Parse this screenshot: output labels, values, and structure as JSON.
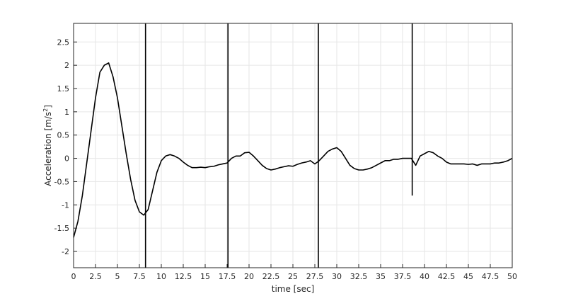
{
  "chart_data": {
    "type": "line",
    "title": "",
    "xlabel": "time [sec]",
    "ylabel": "Acceleration [m/s",
    "ylabel_superscript": "2",
    "ylabel_suffix": "]",
    "xlim": [
      0,
      50
    ],
    "ylim": [
      -2.35,
      2.9
    ],
    "grid": true,
    "x_ticks": [
      0,
      2.5,
      5,
      7.5,
      10,
      12.5,
      15,
      17.5,
      20,
      22.5,
      25,
      27.5,
      30,
      32.5,
      35,
      37.5,
      40,
      42.5,
      45,
      47.5,
      50
    ],
    "x_tick_labels": [
      "0",
      "2.5",
      "5",
      "7.5",
      "10",
      "12.5",
      "15",
      "17.5",
      "20",
      "22.5",
      "25",
      "27.5",
      "30",
      "32.5",
      "35",
      "37.5",
      "40",
      "42.5",
      "45",
      "47.5",
      "50"
    ],
    "y_ticks": [
      2.5,
      2,
      1.5,
      1,
      0.5,
      0,
      -0.5,
      -1,
      -1.5,
      -2
    ],
    "y_tick_labels": [
      "2.5",
      "2",
      "1.5",
      "1",
      "0.5",
      "0",
      "-0.5",
      "-1",
      "-1.5",
      "-2"
    ],
    "line_color": "#000000",
    "series": [
      {
        "x": [
          0,
          0.5,
          1,
          1.5,
          2,
          2.5,
          3,
          3.5,
          4,
          4.5,
          5,
          5.5,
          6,
          6.5,
          7,
          7.5,
          8,
          8.5,
          9,
          9.5,
          10,
          10.5,
          11,
          11.5,
          12,
          12.5,
          13,
          13.5,
          14,
          14.5,
          15,
          15.5,
          16,
          16.5,
          17,
          17.5,
          18,
          18.5,
          19,
          19.5,
          20,
          20.5,
          21,
          21.5,
          22,
          22.5,
          23,
          23.5,
          24,
          24.5,
          25,
          25.5,
          26,
          26.5,
          27,
          27.5,
          28,
          28.5,
          29,
          29.5,
          30,
          30.5,
          31,
          31.5,
          32,
          32.5,
          33,
          33.5,
          34,
          34.5,
          35,
          35.5,
          36,
          36.5,
          37,
          37.5,
          38,
          38.5,
          39,
          39.5,
          40,
          40.5,
          41,
          41.5,
          42,
          42.5,
          43,
          43.5,
          44,
          44.5,
          45,
          45.5,
          46,
          46.5,
          47,
          47.5,
          48,
          48.5,
          49,
          49.5,
          50
        ],
        "y": [
          -1.7,
          -1.35,
          -0.8,
          -0.1,
          0.6,
          1.3,
          1.85,
          2.0,
          2.05,
          1.75,
          1.3,
          0.7,
          0.1,
          -0.45,
          -0.9,
          -1.15,
          -1.22,
          -1.1,
          -0.7,
          -0.3,
          -0.05,
          0.05,
          0.08,
          0.05,
          0.0,
          -0.08,
          -0.15,
          -0.2,
          -0.2,
          -0.19,
          -0.2,
          -0.18,
          -0.17,
          -0.14,
          -0.12,
          -0.1,
          0.0,
          0.05,
          0.05,
          0.12,
          0.13,
          0.05,
          -0.05,
          -0.15,
          -0.22,
          -0.25,
          -0.23,
          -0.2,
          -0.18,
          -0.16,
          -0.17,
          -0.13,
          -0.1,
          -0.08,
          -0.05,
          -0.12,
          -0.05,
          0.05,
          0.15,
          0.2,
          0.23,
          0.15,
          0.0,
          -0.15,
          -0.22,
          -0.25,
          -0.25,
          -0.23,
          -0.2,
          -0.15,
          -0.1,
          -0.05,
          -0.05,
          -0.02,
          -0.02,
          0.0,
          0.0,
          0.0,
          -0.15,
          0.05,
          0.1,
          0.15,
          0.12,
          0.05,
          0.0,
          -0.08,
          -0.12,
          -0.12,
          -0.12,
          -0.12,
          -0.13,
          -0.12,
          -0.15,
          -0.12,
          -0.12,
          -0.12,
          -0.1,
          -0.1,
          -0.08,
          -0.05,
          0.0
        ]
      }
    ],
    "spikes": [
      {
        "x": 8.2,
        "y_min": -2.35,
        "y_max": 2.9
      },
      {
        "x": 17.6,
        "y_min": -2.35,
        "y_max": 2.9
      },
      {
        "x": 27.9,
        "y_min": -2.35,
        "y_max": 2.9
      },
      {
        "x": 38.6,
        "y_min": -0.8,
        "y_max": 2.9
      }
    ]
  }
}
